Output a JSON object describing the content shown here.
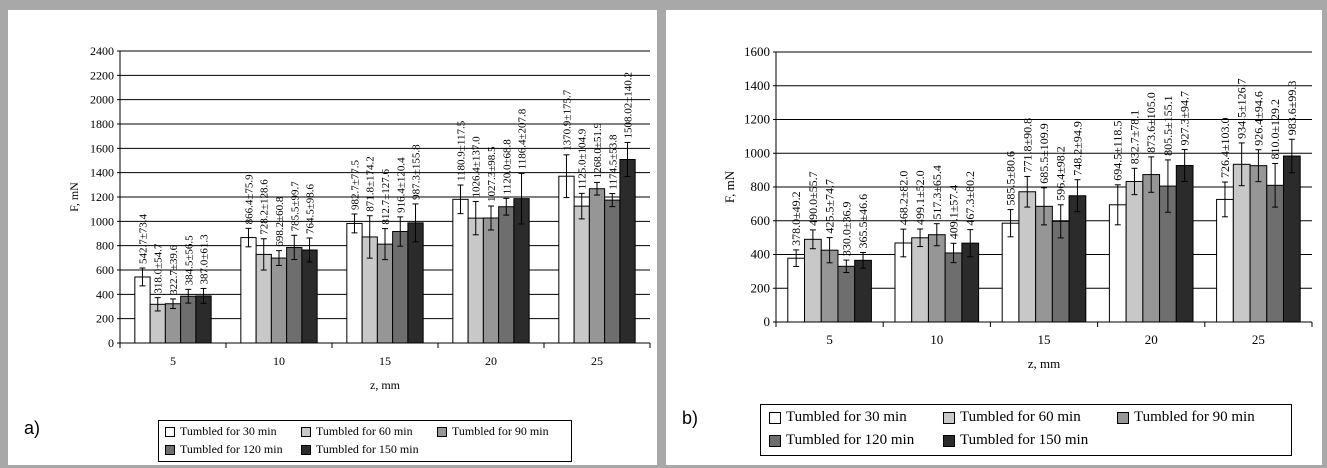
{
  "panel_labels": [
    "a)",
    "b)"
  ],
  "series_colors": [
    "#ffffff",
    "#c8c8c8",
    "#969696",
    "#6e6e6e",
    "#2b2b2b"
  ],
  "legend": [
    "Tumbled for 30 min",
    "Tumbled for 60 min",
    "Tumbled for 90 min",
    "Tumbled for 120 min",
    "Tumbled for 150 min"
  ],
  "chart_data": [
    {
      "type": "bar",
      "title": "",
      "xlabel": "z, mm",
      "ylabel": "F, mN",
      "ylim": [
        0,
        2400
      ],
      "yticks": [
        0,
        200,
        400,
        600,
        800,
        1000,
        1200,
        1400,
        1600,
        1800,
        2000,
        2200,
        2400
      ],
      "grid": true,
      "legend_position": "bottom",
      "categories": [
        "5",
        "10",
        "15",
        "20",
        "25"
      ],
      "series": [
        {
          "name": "Tumbled for 30 min",
          "values": [
            542.7,
            866.4,
            982.7,
            1180.9,
            1370.9
          ],
          "errors": [
            73.4,
            75.9,
            77.5,
            117.5,
            175.7
          ],
          "labels": [
            "542.7±73.4",
            "866.4±75.9",
            "982.7±77.5",
            "1180.9±117.5",
            "1370.9±175.7"
          ]
        },
        {
          "name": "Tumbled for 60 min",
          "values": [
            318.0,
            728.2,
            871.8,
            1026.4,
            1125.0
          ],
          "errors": [
            54.7,
            128.6,
            174.2,
            137.0,
            104.9
          ],
          "labels": [
            "318.0±54.7",
            "728.2±128.6",
            "871.8±174.2",
            "1026.4±137.0",
            "1125.0±104.9"
          ]
        },
        {
          "name": "Tumbled for 90 min",
          "values": [
            322.7,
            698.2,
            812.7,
            1027.3,
            1268.0
          ],
          "errors": [
            39.6,
            60.8,
            127.6,
            98.5,
            51.9
          ],
          "labels": [
            "322.7±39.6",
            "698.2±60.8",
            "812.7±127.6",
            "1027.3±98.5",
            "1268.0±51.9"
          ]
        },
        {
          "name": "Tumbled for 120 min",
          "values": [
            384.5,
            785.5,
            916.4,
            1120.0,
            1174.5
          ],
          "errors": [
            56.5,
            99.7,
            120.4,
            68.8,
            53.8
          ],
          "labels": [
            "384.5±56.5",
            "785.5±99.7",
            "916.4±120.4",
            "1120.0±68.8",
            "1174.5±53.8"
          ]
        },
        {
          "name": "Tumbled for 150 min",
          "values": [
            387.0,
            764.5,
            987.3,
            1186.4,
            1508.02
          ],
          "errors": [
            61.3,
            98.6,
            155.8,
            207.8,
            140.2
          ],
          "labels": [
            "387.0±61.3",
            "764.5±98.6",
            "987.3±155.8",
            "1186.4±207.8",
            "1508.02±140.2"
          ]
        }
      ]
    },
    {
      "type": "bar",
      "title": "",
      "xlabel": "z, mm",
      "ylabel": "F, mN",
      "ylim": [
        0,
        1600
      ],
      "yticks": [
        0,
        200,
        400,
        600,
        800,
        1000,
        1200,
        1400,
        1600
      ],
      "grid": true,
      "legend_position": "bottom",
      "categories": [
        "5",
        "10",
        "15",
        "20",
        "25"
      ],
      "series": [
        {
          "name": "Tumbled for 30 min",
          "values": [
            378.0,
            468.2,
            585.5,
            694.5,
            726.4
          ],
          "errors": [
            49.2,
            82.0,
            80.6,
            118.5,
            103.0
          ],
          "labels": [
            "378.0±49.2",
            "468.2±82.0",
            "585.5±80.6",
            "694.5±118.5",
            "726.4±103.0"
          ]
        },
        {
          "name": "Tumbled for 60 min",
          "values": [
            490.0,
            499.1,
            771.8,
            832.7,
            934.5
          ],
          "errors": [
            55.7,
            52.0,
            90.8,
            78.1,
            126.7
          ],
          "labels": [
            "490.0±55.7",
            "499.1±52.0",
            "771.8±90.8",
            "832.7±78.1",
            "934.5±126.7"
          ]
        },
        {
          "name": "Tumbled for 90 min",
          "values": [
            425.5,
            517.3,
            685.5,
            873.6,
            926.4
          ],
          "errors": [
            74.7,
            65.4,
            109.9,
            105.0,
            94.6
          ],
          "labels": [
            "425.5±74.7",
            "517.3±65.4",
            "685.5±109.9",
            "873.6±105.0",
            "926.4±94.6"
          ]
        },
        {
          "name": "Tumbled for 120 min",
          "values": [
            330.0,
            409.1,
            596.4,
            805.5,
            810.0
          ],
          "errors": [
            36.9,
            57.4,
            98.2,
            155.1,
            129.2
          ],
          "labels": [
            "330.0±36.9",
            "409.1±57.4",
            "596.4±98.2",
            "805.5±155.1",
            "810.0±129.2"
          ]
        },
        {
          "name": "Tumbled for 150 min",
          "values": [
            365.5,
            467.3,
            748.2,
            927.3,
            983.6
          ],
          "errors": [
            46.6,
            80.2,
            94.9,
            94.7,
            99.3
          ],
          "labels": [
            "365.5±46.6",
            "467.3±80.2",
            "748.2±94.9",
            "927.3±94.7",
            "983.6±99.3"
          ]
        }
      ]
    }
  ]
}
